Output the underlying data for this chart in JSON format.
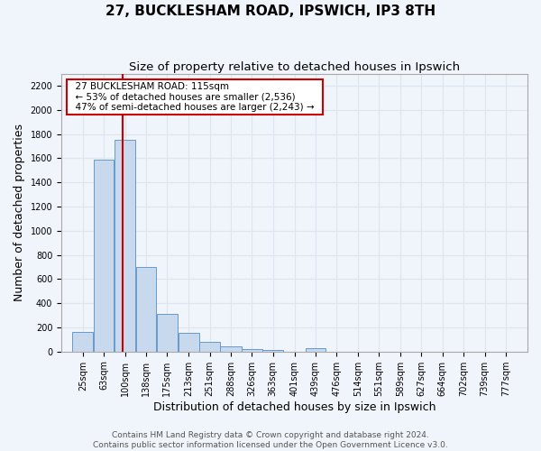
{
  "title": "27, BUCKLESHAM ROAD, IPSWICH, IP3 8TH",
  "subtitle": "Size of property relative to detached houses in Ipswich",
  "xlabel": "Distribution of detached houses by size in Ipswich",
  "ylabel": "Number of detached properties",
  "bar_labels": [
    "25sqm",
    "63sqm",
    "100sqm",
    "138sqm",
    "175sqm",
    "213sqm",
    "251sqm",
    "288sqm",
    "326sqm",
    "363sqm",
    "401sqm",
    "439sqm",
    "476sqm",
    "514sqm",
    "551sqm",
    "589sqm",
    "627sqm",
    "664sqm",
    "702sqm",
    "739sqm",
    "777sqm"
  ],
  "bar_values": [
    160,
    1590,
    1750,
    700,
    315,
    155,
    80,
    45,
    20,
    15,
    0,
    25,
    0,
    0,
    0,
    0,
    0,
    0,
    0,
    0,
    0
  ],
  "bin_edges": [
    25,
    63,
    100,
    138,
    175,
    213,
    251,
    288,
    326,
    363,
    401,
    439,
    476,
    514,
    551,
    589,
    627,
    664,
    702,
    739,
    777,
    815
  ],
  "bar_color": "#c8d9ee",
  "bar_edge_color": "#6699cc",
  "red_line_x": 115,
  "annotation_title": "27 BUCKLESHAM ROAD: 115sqm",
  "annotation_line1": "← 53% of detached houses are smaller (2,536)",
  "annotation_line2": "47% of semi-detached houses are larger (2,243) →",
  "annotation_box_color": "#ffffff",
  "annotation_box_edge": "#cc0000",
  "ylim": [
    0,
    2300
  ],
  "yticks": [
    0,
    200,
    400,
    600,
    800,
    1000,
    1200,
    1400,
    1600,
    1800,
    2000,
    2200
  ],
  "footer1": "Contains HM Land Registry data © Crown copyright and database right 2024.",
  "footer2": "Contains public sector information licensed under the Open Government Licence v3.0.",
  "background_color": "#f0f4fb",
  "grid_color": "#dde6f0",
  "title_fontsize": 11,
  "subtitle_fontsize": 9.5,
  "axis_label_fontsize": 9,
  "tick_fontsize": 7,
  "footer_fontsize": 6.5
}
